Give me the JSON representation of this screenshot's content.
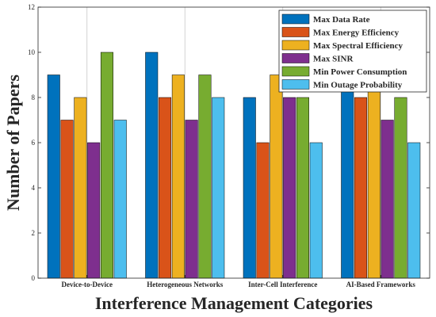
{
  "chart_data": {
    "type": "bar",
    "xlabel": "Interference Management Categories",
    "ylabel": "Number of Papers",
    "ylim": [
      0,
      12
    ],
    "yticks": [
      0,
      2,
      4,
      6,
      8,
      10,
      12
    ],
    "grid": "vertical lines at category centers",
    "legend_position": "top-right",
    "categories": [
      "Device-to-Device",
      "Heterogeneous Networks",
      "Inter-Cell Interference",
      "AI-Based Frameworks"
    ],
    "series": [
      {
        "name": "Max Data Rate",
        "color": "#0072BD",
        "values": [
          9,
          10,
          8,
          9
        ]
      },
      {
        "name": "Max Energy Efficiency",
        "color": "#D95319",
        "values": [
          7,
          8,
          6,
          8
        ]
      },
      {
        "name": "Max Spectral Efficiency",
        "color": "#EDB120",
        "values": [
          8,
          9,
          9,
          9
        ]
      },
      {
        "name": "Max SINR",
        "color": "#7E2F8E",
        "values": [
          6,
          7,
          8,
          7
        ]
      },
      {
        "name": "Min Power Consumption",
        "color": "#77AC30",
        "values": [
          10,
          9,
          8,
          8
        ]
      },
      {
        "name": "Min Outage Probability",
        "color": "#4DBEEE",
        "values": [
          7,
          8,
          6,
          6
        ]
      }
    ]
  }
}
